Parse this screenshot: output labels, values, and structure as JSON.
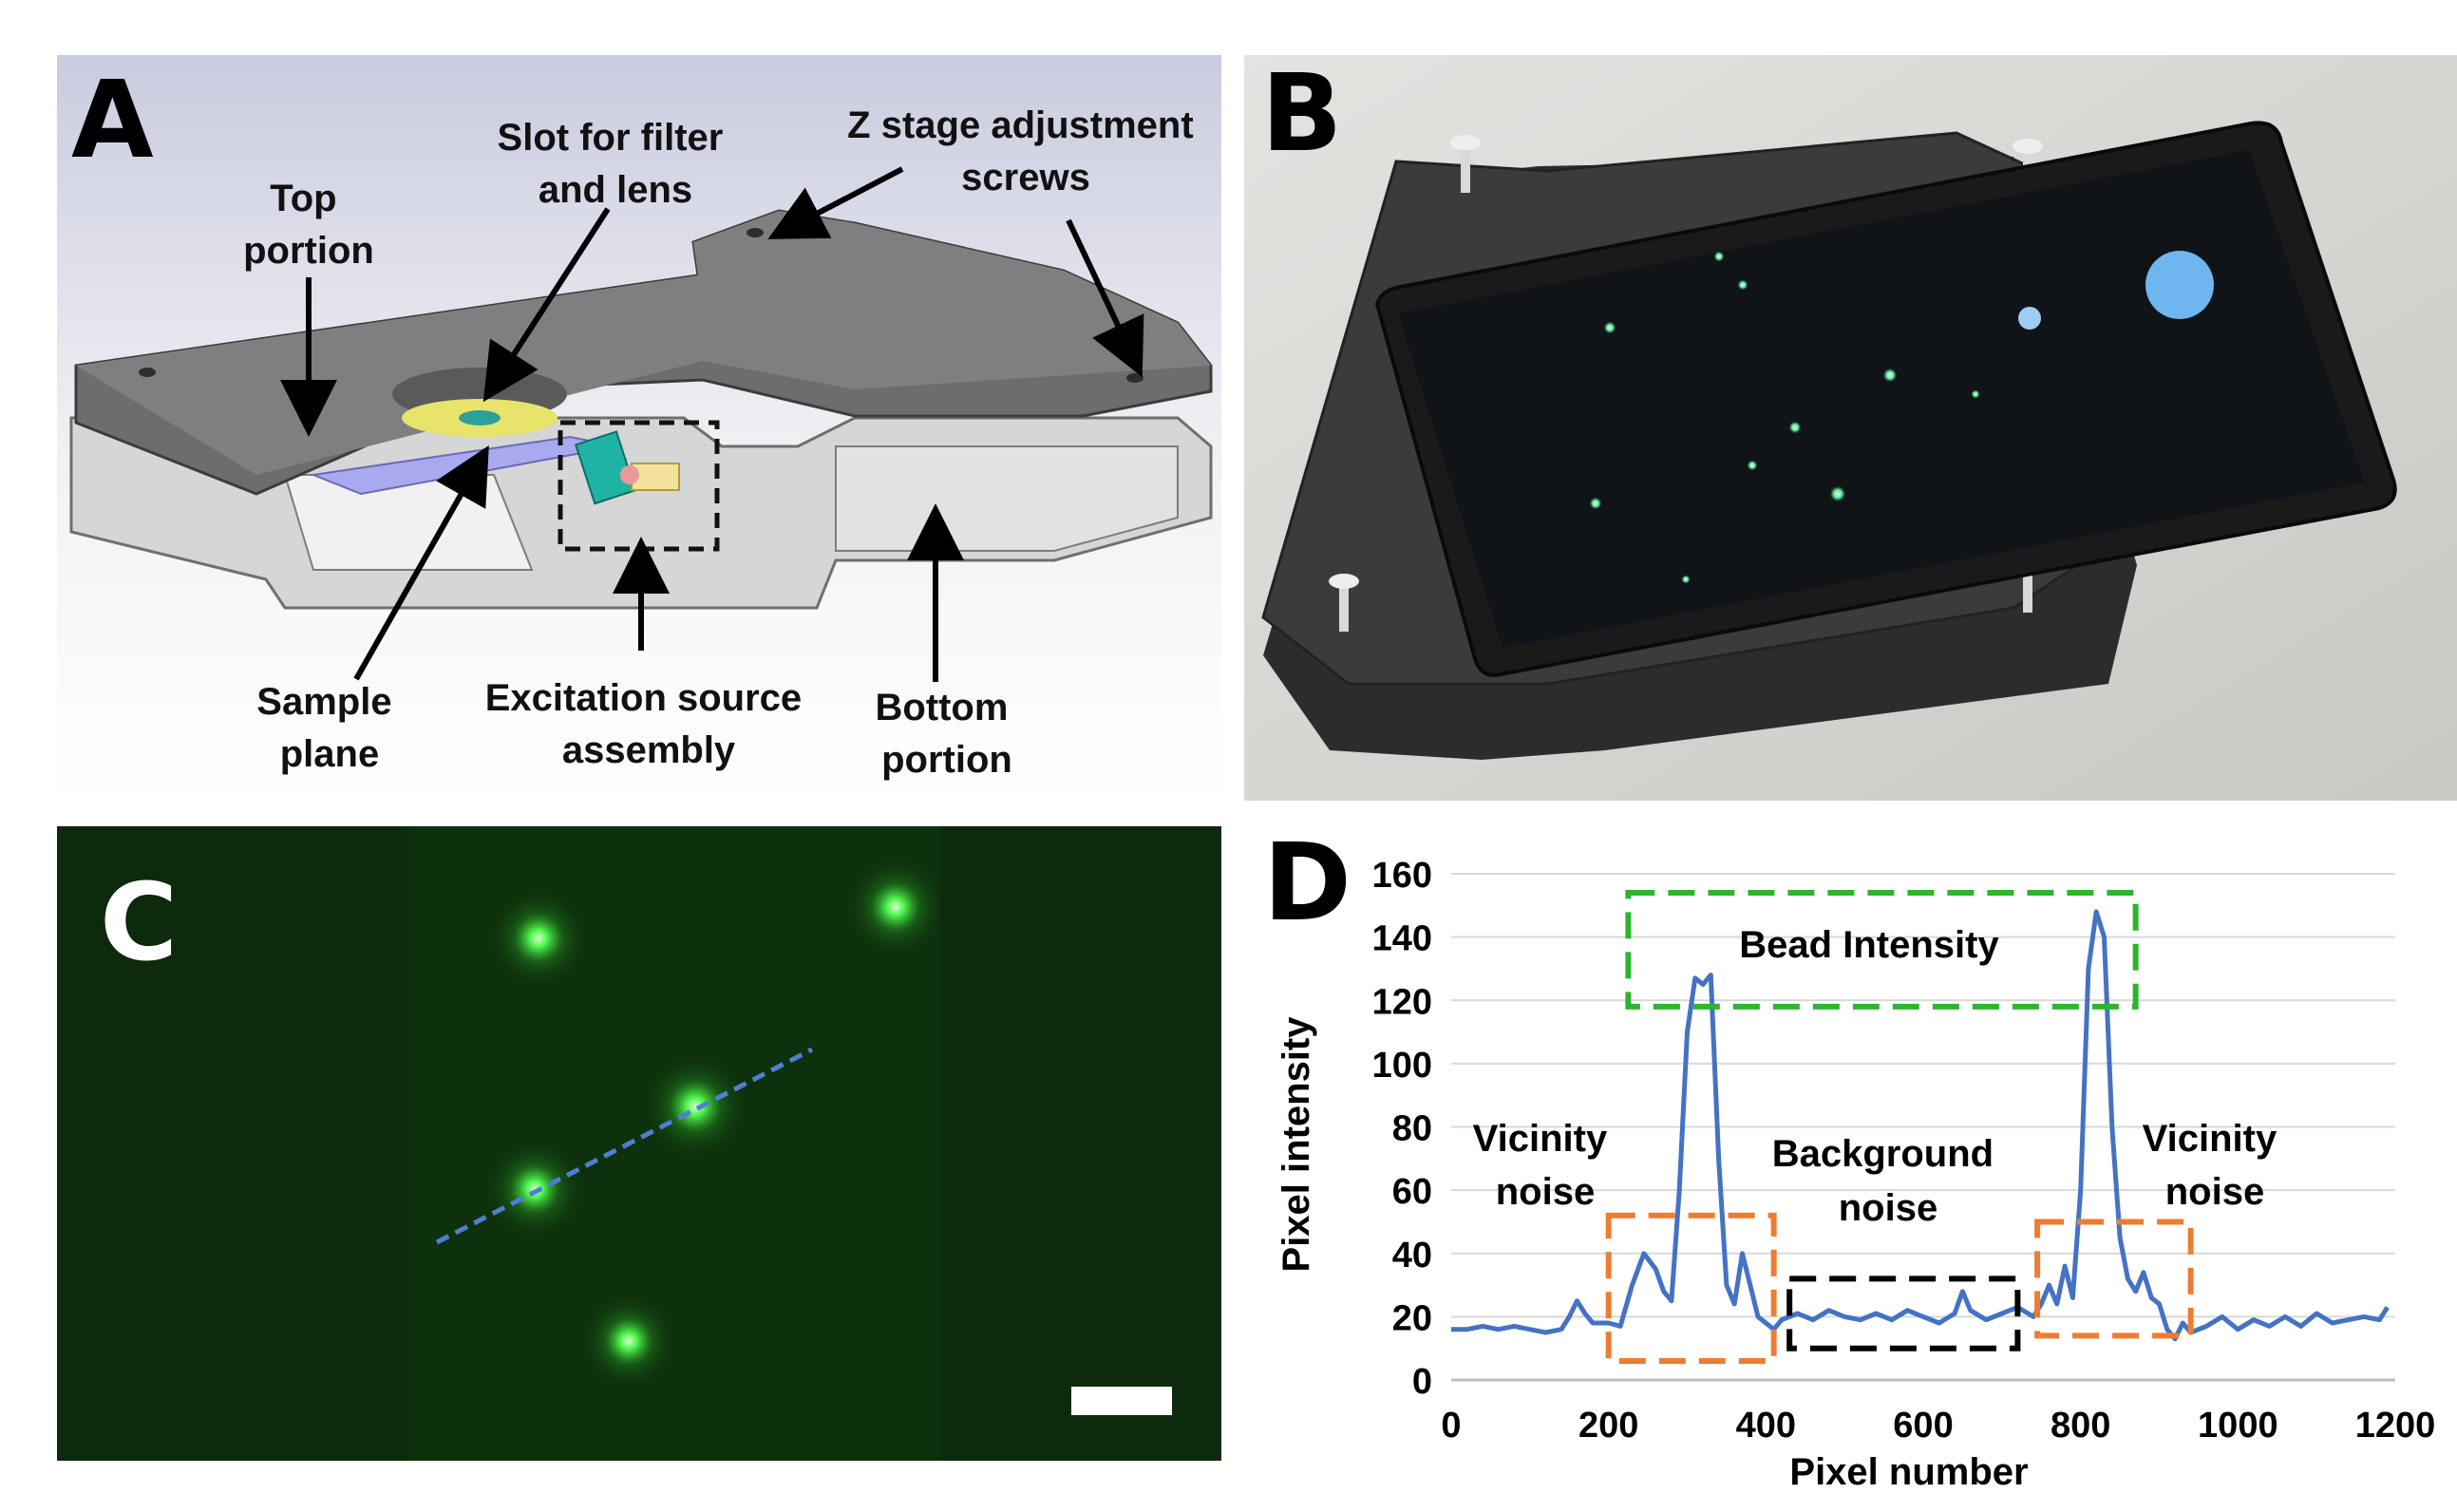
{
  "panels": {
    "a": {
      "letter": "A",
      "labels": {
        "top_portion": [
          "Top",
          "portion"
        ],
        "slot": [
          "Slot for filter",
          "and lens"
        ],
        "z_stage": [
          "Z stage adjustment",
          "screws"
        ],
        "sample_plane": [
          "Sample",
          "plane"
        ],
        "excitation": [
          "Excitation source",
          "assembly"
        ],
        "bottom_portion": [
          "Bottom",
          "portion"
        ]
      }
    },
    "b": {
      "letter": "B"
    },
    "c": {
      "letter": "C"
    },
    "d": {
      "letter": "D"
    }
  },
  "chart_data": {
    "type": "line",
    "xlabel": "Pixel number",
    "ylabel": "Pixel intensity",
    "xlim": [
      0,
      1200
    ],
    "ylim": [
      0,
      160
    ],
    "xticks": [
      0,
      200,
      400,
      600,
      800,
      1000,
      1200
    ],
    "yticks": [
      0,
      20,
      40,
      60,
      80,
      100,
      120,
      140,
      160
    ],
    "grid": "horizontal",
    "series": [
      {
        "color": "#4472c4",
        "x": [
          0,
          20,
          40,
          60,
          80,
          100,
          120,
          140,
          150,
          160,
          170,
          180,
          200,
          215,
          230,
          245,
          260,
          270,
          280,
          290,
          300,
          310,
          320,
          330,
          340,
          350,
          360,
          370,
          380,
          390,
          400,
          410,
          420,
          440,
          460,
          480,
          500,
          520,
          540,
          560,
          580,
          600,
          620,
          640,
          650,
          660,
          680,
          700,
          720,
          740,
          750,
          760,
          770,
          780,
          790,
          800,
          810,
          820,
          830,
          840,
          850,
          860,
          870,
          880,
          890,
          900,
          910,
          920,
          930,
          940,
          960,
          980,
          1000,
          1020,
          1040,
          1060,
          1080,
          1100,
          1120,
          1140,
          1160,
          1180,
          1190
        ],
        "y": [
          16,
          16,
          17,
          16,
          17,
          16,
          15,
          16,
          20,
          25,
          21,
          18,
          18,
          17,
          30,
          40,
          35,
          28,
          25,
          60,
          110,
          127,
          125,
          128,
          70,
          30,
          24,
          40,
          30,
          20,
          18,
          16,
          19,
          21,
          19,
          22,
          20,
          19,
          21,
          19,
          22,
          20,
          18,
          21,
          28,
          22,
          19,
          21,
          23,
          20,
          24,
          30,
          24,
          36,
          26,
          60,
          130,
          148,
          140,
          80,
          45,
          32,
          28,
          34,
          26,
          24,
          16,
          13,
          18,
          15,
          17,
          20,
          16,
          19,
          17,
          20,
          17,
          21,
          18,
          19,
          20,
          19,
          23
        ]
      }
    ],
    "annotations": {
      "bead": "Bead Intensity",
      "vicinity_left": [
        "Vicinity",
        "noise"
      ],
      "background": [
        "Background",
        "noise"
      ],
      "vicinity_right": [
        "Vicinity",
        "noise"
      ]
    },
    "annotation_colors": {
      "bead": "#2db52d",
      "vicinity": "#ed7d31",
      "background": "#000000"
    }
  }
}
